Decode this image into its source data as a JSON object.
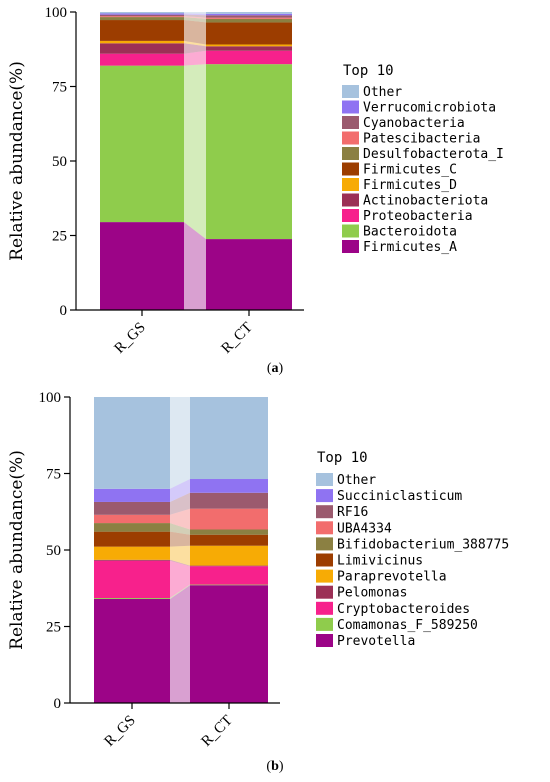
{
  "colors": {
    "Other": "#a6c2de",
    "Verrucomicrobiota": "#8f73f2",
    "Cyanobacteria": "#9b5a6e",
    "Patescibacteria": "#f26d6d",
    "Desulfobacterota_I": "#8b8042",
    "Firmicutes_C": "#9c3d00",
    "Firmicutes_D": "#f7ab05",
    "Actinobacteriota": "#9c3056",
    "Proteobacteria": "#f7218c",
    "Bacteroidota": "#8fcc4c",
    "Firmicutes_A": "#9c0487",
    "Succiniclasticum": "#8f73f2",
    "RF16": "#9b5a6e",
    "UBA4334": "#f26d6d",
    "Bifidobacterium_388775": "#8b8042",
    "Limivicinus": "#9c3d00",
    "Paraprevotella": "#f7ab05",
    "Pelomonas": "#9c3056",
    "Cryptobacteroides": "#f7218c",
    "Comamonas_F_589250": "#8fcc4c",
    "Prevotella": "#9c0487"
  },
  "chart_data": [
    {
      "type": "bar",
      "stacked": true,
      "panel_label": "(a)",
      "categories": [
        "R_GS",
        "R_CT"
      ],
      "ylabel": "Relative abundance(%)",
      "ylim": [
        0,
        100
      ],
      "yticks": [
        0,
        25,
        50,
        75,
        100
      ],
      "legend_title": "Top 10",
      "legend_position": "right",
      "series": [
        {
          "name": "Firmicutes_A",
          "values": [
            29.5,
            23.8
          ]
        },
        {
          "name": "Bacteroidota",
          "values": [
            52.5,
            58.7
          ]
        },
        {
          "name": "Proteobacteria",
          "values": [
            4.0,
            4.5
          ]
        },
        {
          "name": "Actinobacteriota",
          "values": [
            3.5,
            1.5
          ]
        },
        {
          "name": "Firmicutes_D",
          "values": [
            0.8,
            0.6
          ]
        },
        {
          "name": "Firmicutes_C",
          "values": [
            7.0,
            7.4
          ]
        },
        {
          "name": "Desulfobacterota_I",
          "values": [
            1.0,
            1.2
          ]
        },
        {
          "name": "Patescibacteria",
          "values": [
            0.3,
            0.4
          ]
        },
        {
          "name": "Cyanobacteria",
          "values": [
            0.5,
            0.8
          ]
        },
        {
          "name": "Verrucomicrobiota",
          "values": [
            0.4,
            0.5
          ]
        },
        {
          "name": "Other",
          "values": [
            0.5,
            0.6
          ]
        }
      ]
    },
    {
      "type": "bar",
      "stacked": true,
      "panel_label": "(b)",
      "categories": [
        "R_GS",
        "R_CT"
      ],
      "ylabel": "Relative abundance(%)",
      "ylim": [
        0,
        100
      ],
      "yticks": [
        0,
        25,
        50,
        75,
        100
      ],
      "legend_title": "Top 10",
      "legend_position": "right",
      "series": [
        {
          "name": "Prevotella",
          "values": [
            34.0,
            38.5
          ]
        },
        {
          "name": "Comamonas_F_589250",
          "values": [
            0.3,
            0.2
          ]
        },
        {
          "name": "Cryptobacteroides",
          "values": [
            12.2,
            6.0
          ]
        },
        {
          "name": "Pelomonas",
          "values": [
            0.3,
            0.2
          ]
        },
        {
          "name": "Paraprevotella",
          "values": [
            4.3,
            6.5
          ]
        },
        {
          "name": "Limivicinus",
          "values": [
            4.9,
            3.6
          ]
        },
        {
          "name": "Bifidobacterium_388775",
          "values": [
            2.8,
            1.7
          ]
        },
        {
          "name": "UBA4334",
          "values": [
            2.7,
            6.8
          ]
        },
        {
          "name": "RF16",
          "values": [
            4.2,
            5.2
          ]
        },
        {
          "name": "Succiniclasticum",
          "values": [
            4.3,
            4.5
          ]
        },
        {
          "name": "Other",
          "values": [
            30.0,
            26.8
          ]
        }
      ]
    }
  ]
}
